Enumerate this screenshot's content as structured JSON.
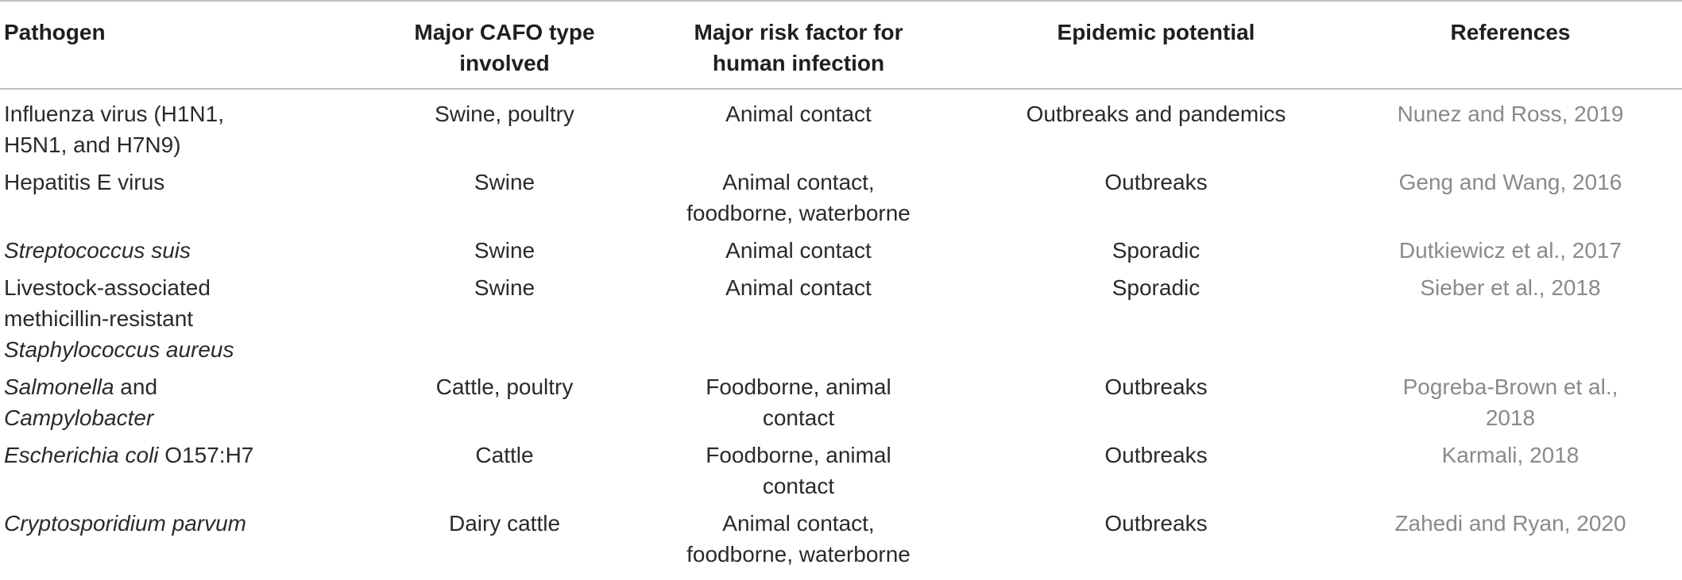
{
  "table": {
    "headers": {
      "pathogen": "Pathogen",
      "cafo_line1": "Major CAFO type",
      "cafo_line2": "involved",
      "risk_line1": "Major risk factor for",
      "risk_line2": "human infection",
      "epidemic": "Epidemic potential",
      "references": "References"
    },
    "rows": [
      {
        "pathogen_l1": "Influenza virus (H1N1,",
        "pathogen_l2": "H5N1, and H7N9)",
        "cafo": "Swine, poultry",
        "risk_l1": "Animal contact",
        "epidemic": "Outbreaks and pandemics",
        "ref_l1": "Nunez and Ross, 2019"
      },
      {
        "pathogen_l1": "Hepatitis E virus",
        "cafo": "Swine",
        "risk_l1": "Animal contact,",
        "risk_l2": "foodborne, waterborne",
        "epidemic": "Outbreaks",
        "ref_l1": "Geng and Wang, 2016"
      },
      {
        "pathogen_italic": "Streptococcus suis",
        "cafo": "Swine",
        "risk_l1": "Animal contact",
        "epidemic": "Sporadic",
        "ref_l1": "Dutkiewicz et al., 2017"
      },
      {
        "pathogen_l1": "Livestock-associated",
        "pathogen_l2": "methicillin-resistant",
        "pathogen_italic": "Staphylococcus aureus",
        "cafo": "Swine",
        "risk_l1": "Animal contact",
        "epidemic": "Sporadic",
        "ref_l1": "Sieber et al., 2018"
      },
      {
        "pathogen_italic": "Salmonella",
        "pathogen_plain": " and",
        "pathogen_italic2": "Campylobacter",
        "cafo": "Cattle, poultry",
        "risk_l1": "Foodborne, animal",
        "risk_l2": "contact",
        "epidemic": "Outbreaks",
        "ref_l1": "Pogreba-Brown et al.,",
        "ref_l2": "2018"
      },
      {
        "pathogen_italic": "Escherichia coli",
        "pathogen_plain": " O157:H7",
        "cafo": "Cattle",
        "risk_l1": "Foodborne, animal",
        "risk_l2": "contact",
        "epidemic": "Outbreaks",
        "ref_l1": "Karmali, 2018"
      },
      {
        "pathogen_italic": "Cryptosporidium parvum",
        "cafo": "Dairy cattle",
        "risk_l1": "Animal contact,",
        "risk_l2": "foodborne, waterborne",
        "epidemic": "Outbreaks",
        "ref_l1": "Zahedi and Ryan, 2020"
      }
    ]
  }
}
